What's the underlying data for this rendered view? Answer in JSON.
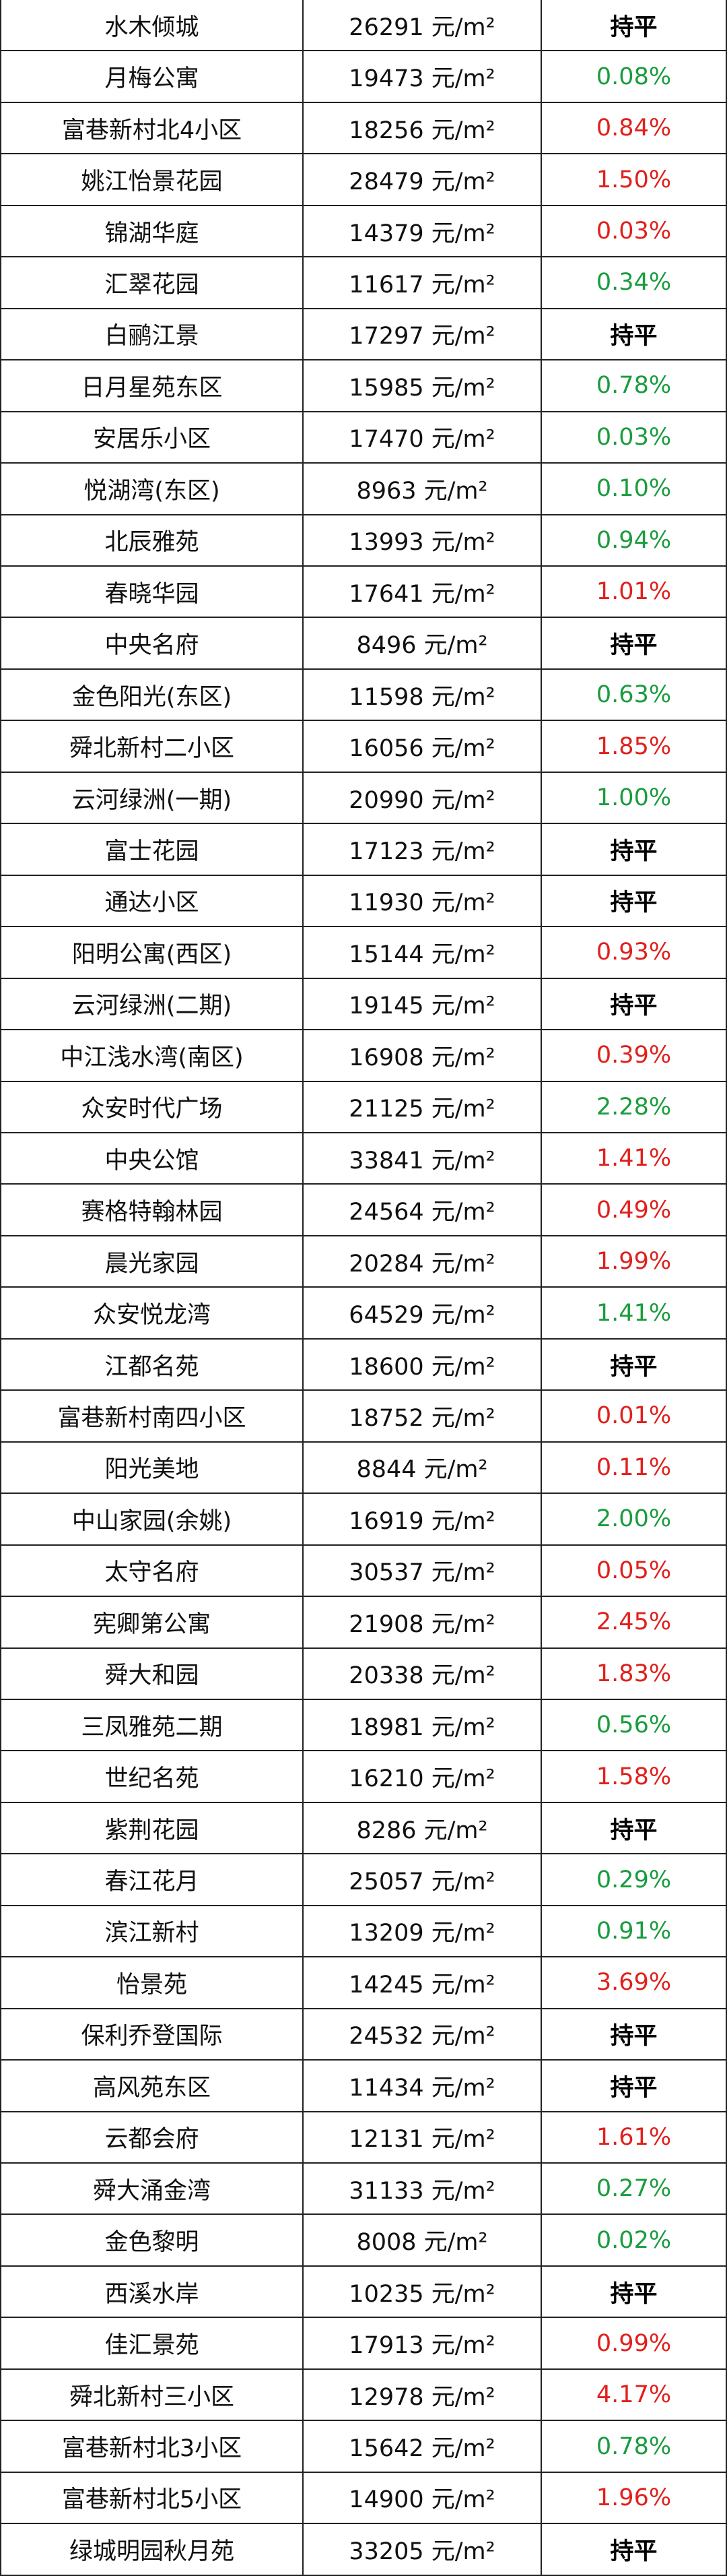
{
  "table": {
    "rows": [
      {
        "name": "水木倾城",
        "price": "26291 元/m²",
        "change": "持平",
        "color": "#000000"
      },
      {
        "name": "月梅公寓",
        "price": "19473 元/m²",
        "change": "0.08%",
        "color": "#1a9c3e"
      },
      {
        "name": "富巷新村北4小区",
        "price": "18256 元/m²",
        "change": "0.84%",
        "color": "#e0201c"
      },
      {
        "name": "姚江怡景花园",
        "price": "28479 元/m²",
        "change": "1.50%",
        "color": "#e0201c"
      },
      {
        "name": "锦湖华庭",
        "price": "14379 元/m²",
        "change": "0.03%",
        "color": "#e0201c"
      },
      {
        "name": "汇翠花园",
        "price": "11617 元/m²",
        "change": "0.34%",
        "color": "#1a9c3e"
      },
      {
        "name": "白鹂江景",
        "price": "17297 元/m²",
        "change": "持平",
        "color": "#000000"
      },
      {
        "name": "日月星苑东区",
        "price": "15985 元/m²",
        "change": "0.78%",
        "color": "#1a9c3e"
      },
      {
        "name": "安居乐小区",
        "price": "17470 元/m²",
        "change": "0.03%",
        "color": "#1a9c3e"
      },
      {
        "name": "悦湖湾(东区)",
        "price": "8963 元/m²",
        "change": "0.10%",
        "color": "#1a9c3e"
      },
      {
        "name": "北辰雅苑",
        "price": "13993 元/m²",
        "change": "0.94%",
        "color": "#1a9c3e"
      },
      {
        "name": "春晓华园",
        "price": "17641 元/m²",
        "change": "1.01%",
        "color": "#e0201c"
      },
      {
        "name": "中央名府",
        "price": "8496 元/m²",
        "change": "持平",
        "color": "#000000"
      },
      {
        "name": "金色阳光(东区)",
        "price": "11598 元/m²",
        "change": "0.63%",
        "color": "#1a9c3e"
      },
      {
        "name": "舜北新村二小区",
        "price": "16056 元/m²",
        "change": "1.85%",
        "color": "#e0201c"
      },
      {
        "name": "云河绿洲(一期)",
        "price": "20990 元/m²",
        "change": "1.00%",
        "color": "#1a9c3e"
      },
      {
        "name": "富士花园",
        "price": "17123 元/m²",
        "change": "持平",
        "color": "#000000"
      },
      {
        "name": "通达小区",
        "price": "11930 元/m²",
        "change": "持平",
        "color": "#000000"
      },
      {
        "name": "阳明公寓(西区)",
        "price": "15144 元/m²",
        "change": "0.93%",
        "color": "#e0201c"
      },
      {
        "name": "云河绿洲(二期)",
        "price": "19145 元/m²",
        "change": "持平",
        "color": "#000000"
      },
      {
        "name": "中江浅水湾(南区)",
        "price": "16908 元/m²",
        "change": "0.39%",
        "color": "#e0201c"
      },
      {
        "name": "众安时代广场",
        "price": "21125 元/m²",
        "change": "2.28%",
        "color": "#1a9c3e"
      },
      {
        "name": "中央公馆",
        "price": "33841 元/m²",
        "change": "1.41%",
        "color": "#e0201c"
      },
      {
        "name": "赛格特翰林园",
        "price": "24564 元/m²",
        "change": "0.49%",
        "color": "#e0201c"
      },
      {
        "name": "晨光家园",
        "price": "20284 元/m²",
        "change": "1.99%",
        "color": "#e0201c"
      },
      {
        "name": "众安悦龙湾",
        "price": "64529 元/m²",
        "change": "1.41%",
        "color": "#1a9c3e"
      },
      {
        "name": "江都名苑",
        "price": "18600 元/m²",
        "change": "持平",
        "color": "#000000"
      },
      {
        "name": "富巷新村南四小区",
        "price": "18752 元/m²",
        "change": "0.01%",
        "color": "#e0201c"
      },
      {
        "name": "阳光美地",
        "price": "8844 元/m²",
        "change": "0.11%",
        "color": "#e0201c"
      },
      {
        "name": "中山家园(余姚)",
        "price": "16919 元/m²",
        "change": "2.00%",
        "color": "#1a9c3e"
      },
      {
        "name": "太守名府",
        "price": "30537 元/m²",
        "change": "0.05%",
        "color": "#e0201c"
      },
      {
        "name": "宪卿第公寓",
        "price": "21908 元/m²",
        "change": "2.45%",
        "color": "#e0201c"
      },
      {
        "name": "舜大和园",
        "price": "20338 元/m²",
        "change": "1.83%",
        "color": "#e0201c"
      },
      {
        "name": "三凤雅苑二期",
        "price": "18981 元/m²",
        "change": "0.56%",
        "color": "#1a9c3e"
      },
      {
        "name": "世纪名苑",
        "price": "16210 元/m²",
        "change": "1.58%",
        "color": "#e0201c"
      },
      {
        "name": "紫荆花园",
        "price": "8286 元/m²",
        "change": "持平",
        "color": "#000000"
      },
      {
        "name": "春江花月",
        "price": "25057 元/m²",
        "change": "0.29%",
        "color": "#1a9c3e"
      },
      {
        "name": "滨江新村",
        "price": "13209 元/m²",
        "change": "0.91%",
        "color": "#1a9c3e"
      },
      {
        "name": "怡景苑",
        "price": "14245 元/m²",
        "change": "3.69%",
        "color": "#e0201c"
      },
      {
        "name": "保利乔登国际",
        "price": "24532 元/m²",
        "change": "持平",
        "color": "#000000"
      },
      {
        "name": "高风苑东区",
        "price": "11434 元/m²",
        "change": "持平",
        "color": "#000000"
      },
      {
        "name": "云都会府",
        "price": "12131 元/m²",
        "change": "1.61%",
        "color": "#e0201c"
      },
      {
        "name": "舜大涌金湾",
        "price": "31133 元/m²",
        "change": "0.27%",
        "color": "#1a9c3e"
      },
      {
        "name": "金色黎明",
        "price": "8008 元/m²",
        "change": "0.02%",
        "color": "#1a9c3e"
      },
      {
        "name": "西溪水岸",
        "price": "10235 元/m²",
        "change": "持平",
        "color": "#000000"
      },
      {
        "name": "佳汇景苑",
        "price": "17913 元/m²",
        "change": "0.99%",
        "color": "#e0201c"
      },
      {
        "name": "舜北新村三小区",
        "price": "12978 元/m²",
        "change": "4.17%",
        "color": "#e0201c"
      },
      {
        "name": "富巷新村北3小区",
        "price": "15642 元/m²",
        "change": "0.78%",
        "color": "#1a9c3e"
      },
      {
        "name": "富巷新村北5小区",
        "price": "14900 元/m²",
        "change": "1.96%",
        "color": "#e0201c"
      },
      {
        "name": "绿城明园秋月苑",
        "price": "33205 元/m²",
        "change": "持平",
        "color": "#000000"
      }
    ]
  }
}
